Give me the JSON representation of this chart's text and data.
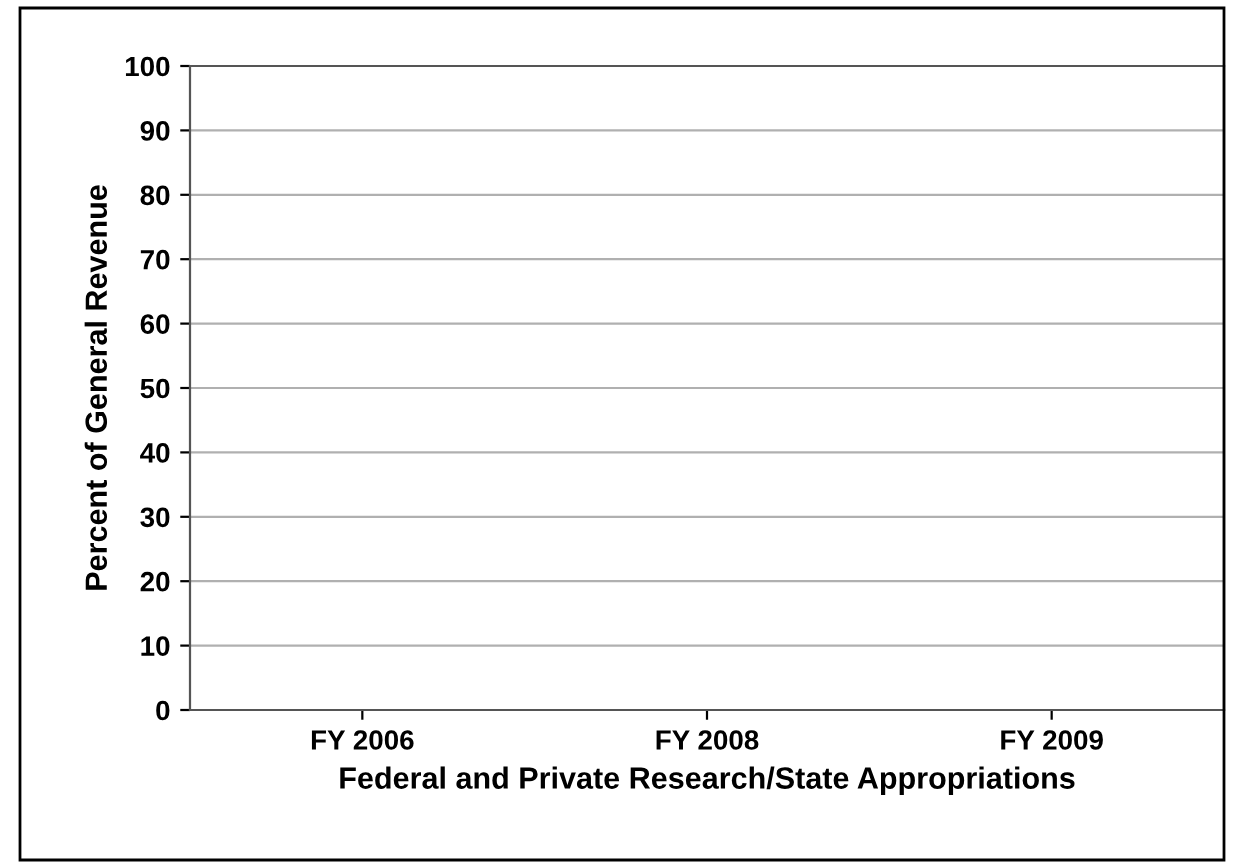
{
  "chart_data": {
    "type": "bar",
    "xlabel": "Federal and Private Research/State Appropriations",
    "ylabel": "Percent of General Revenue",
    "categories": [
      "FY 2006",
      "FY 2008",
      "FY 2009"
    ],
    "values": [
      null,
      null,
      null
    ],
    "ylim": [
      0,
      100
    ],
    "yticks": [
      0,
      10,
      20,
      30,
      40,
      50,
      60,
      70,
      80,
      90,
      100
    ],
    "grid": "y"
  }
}
